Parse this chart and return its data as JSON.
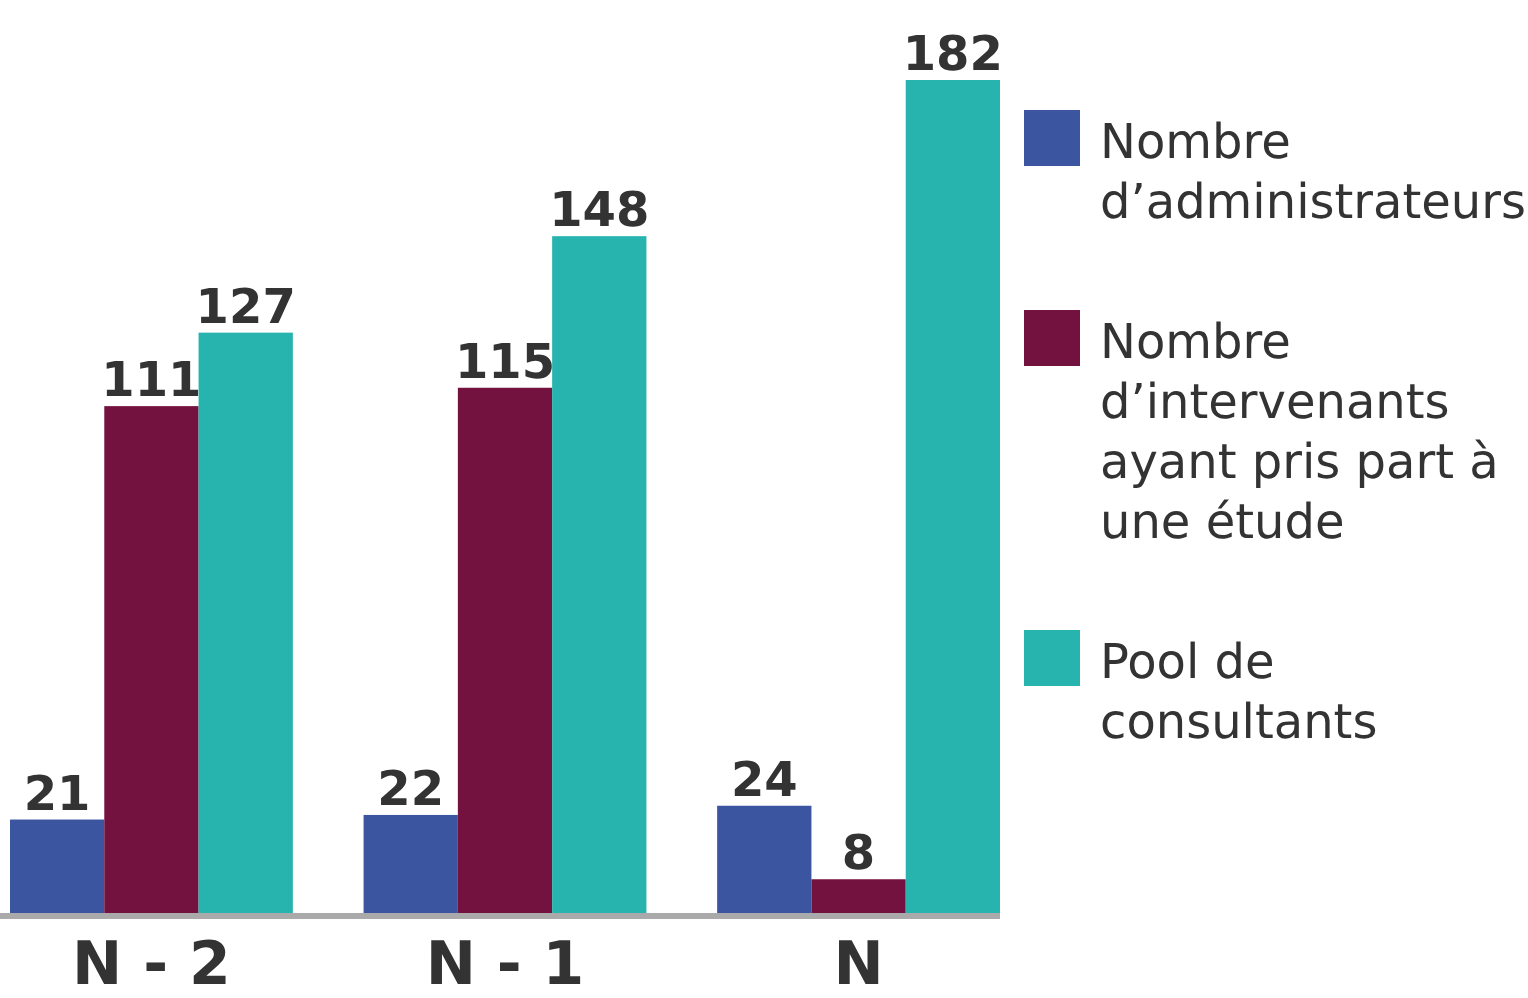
{
  "chart_data": {
    "type": "bar",
    "categories": [
      "N - 2",
      "N - 1",
      "N"
    ],
    "series": [
      {
        "name": "Nombre d’administrateurs",
        "color": "#3b55a0",
        "values": [
          21,
          22,
          24
        ]
      },
      {
        "name": "Nombre d’intervenants ayant pris part à une étude",
        "color": "#74123f",
        "values": [
          111,
          115,
          8
        ]
      },
      {
        "name": "Pool de consultants",
        "color": "#27b3ae",
        "values": [
          127,
          148,
          182
        ]
      }
    ],
    "data_labels": true,
    "legend": "right"
  }
}
